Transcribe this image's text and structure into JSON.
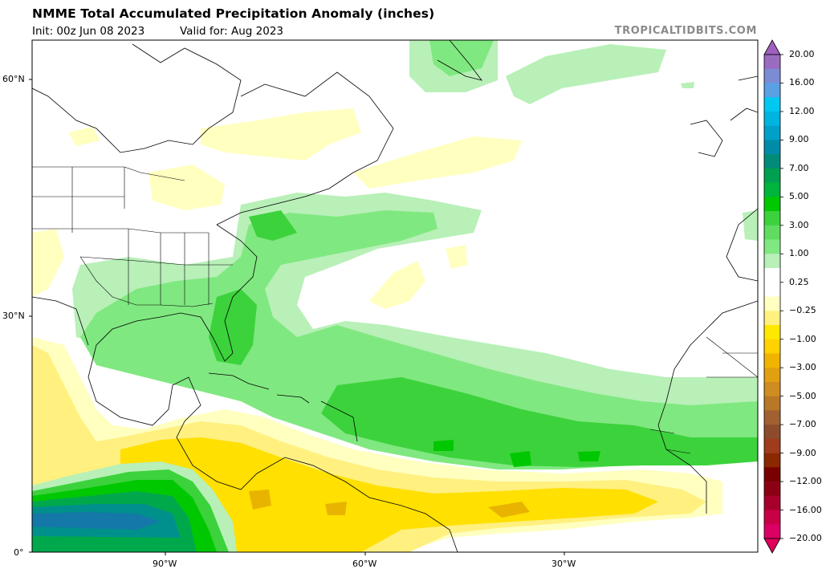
{
  "header": {
    "title": "NMME Total Accumulated Precipitation Anomaly (inches)",
    "init": "Init: 00z Jun 08 2023",
    "valid": "Valid for: Aug 2023",
    "brand": "TROPICALTIDBITS.COM"
  },
  "map": {
    "lat_labels": [
      "60°N",
      "30°N",
      "0°"
    ],
    "lon_labels": [
      "90°W",
      "60°W",
      "30°W"
    ]
  },
  "colorbar": {
    "labels": [
      "20.00",
      "16.00",
      "12.00",
      "9.00",
      "7.00",
      "5.00",
      "3.00",
      "1.00",
      "0.25",
      "−0.25",
      "−1.00",
      "−3.00",
      "−5.00",
      "−7.00",
      "−9.00",
      "−12.00",
      "−16.00",
      "−20.00"
    ],
    "colors": {
      "wet_1": "#b8f0b8",
      "wet_2": "#80e880",
      "wet_3": "#3cd23c",
      "wet_4": "#00c800",
      "wet_5": "#00a84c",
      "wet_6": "#00908c",
      "wet_7": "#1478a8",
      "dry_1": "#ffffc0",
      "dry_2": "#fff080",
      "dry_3": "#ffe000",
      "dry_4": "#e8b400",
      "dry_5": "#c88c10",
      "dry_6": "#8c2800"
    }
  }
}
